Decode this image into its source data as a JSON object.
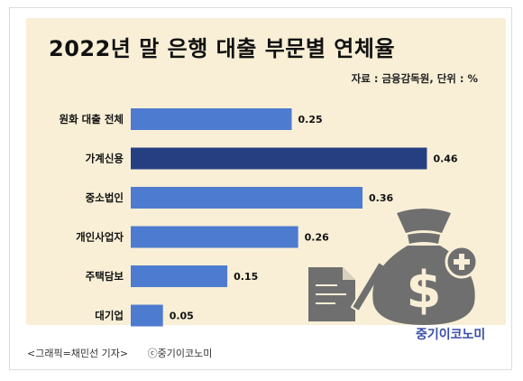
{
  "title": "2022년 말 은행 대출 부문별 연체율",
  "source": "자료 : 금융감독원, 단위 : %",
  "logo_text": "중기이코노미",
  "credit_left": "<그래픽=채민선 기자>",
  "credit_right": "ⓒ중기이코노미",
  "colors": {
    "background": "#f8efd6",
    "bar": "#4d7bcf",
    "bar_highlight": "#263f80",
    "icon": "#6f6f6f",
    "logo": "#3a4fa8"
  },
  "chart_data": {
    "type": "bar",
    "orientation": "horizontal",
    "categories": [
      "원화 대출 전체",
      "가계신용",
      "중소법인",
      "개인사업자",
      "주택담보",
      "대기업"
    ],
    "values": [
      0.25,
      0.46,
      0.36,
      0.26,
      0.15,
      0.05
    ],
    "data_labels": [
      "0.25",
      "0.46",
      "0.36",
      "0.26",
      "0.15",
      "0.05"
    ],
    "highlight_index": 1,
    "unit": "%",
    "xlim": [
      0,
      0.5
    ],
    "grid": false,
    "legend": "none"
  }
}
